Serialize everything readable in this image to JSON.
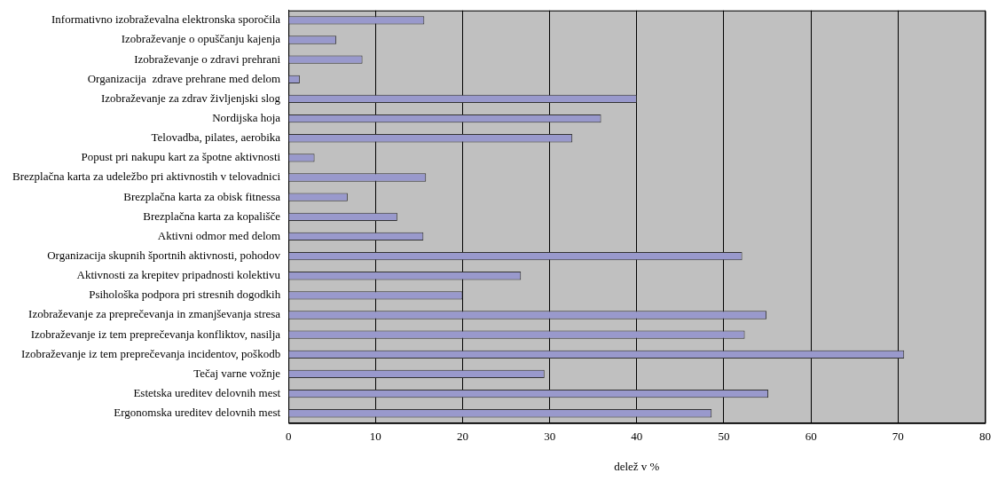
{
  "chart_data": {
    "type": "bar",
    "orientation": "horizontal",
    "xlabel": "delež v %",
    "categories": [
      "Informativno izobraževalna elektronska sporočila",
      "Izobraževanje o opuščanju kajenja",
      "Izobraževanje o zdravi prehrani",
      "Organizacija  zdrave prehrane med delom",
      "Izobraževanje za zdrav življenjski slog",
      "Nordijska hoja",
      "Telovadba, pilates, aerobika",
      "Popust pri nakupu kart za špotne aktivnosti",
      "Brezplačna karta za udeležbo pri aktivnostih v telovadnici",
      "Brezplačna karta za obisk fitnessa",
      "Brezplačna karta za kopališče",
      "Aktivni odmor med delom",
      "Organizacija skupnih športnih aktivnosti, pohodov",
      "Aktivnosti za krepitev pripadnosti kolektivu",
      "Psihološka podpora pri stresnih dogodkih",
      "Izobraževanje za preprečevanja in zmanjševanja stresa",
      "Izobraževanje iz tem preprečevanja konfliktov, nasilja",
      "Izobraževanje iz tem preprečevanja incidentov, poškodb",
      "Tečaj varne vožnje",
      "Estetska ureditev delovnih mest",
      "Ergonomska ureditev delovnih mest"
    ],
    "values": [
      15.6,
      5.5,
      8.5,
      1.3,
      40,
      35.9,
      32.6,
      3,
      15.8,
      6.8,
      12.5,
      15.5,
      52.1,
      26.7,
      20,
      54.9,
      52.4,
      70.7,
      29.4,
      55.1,
      48.6
    ],
    "color": "#9999cc",
    "xlim": [
      0,
      80
    ],
    "xticks": [
      0,
      10,
      20,
      30,
      40,
      50,
      60,
      70,
      80
    ],
    "grid": "x",
    "legend": false
  }
}
